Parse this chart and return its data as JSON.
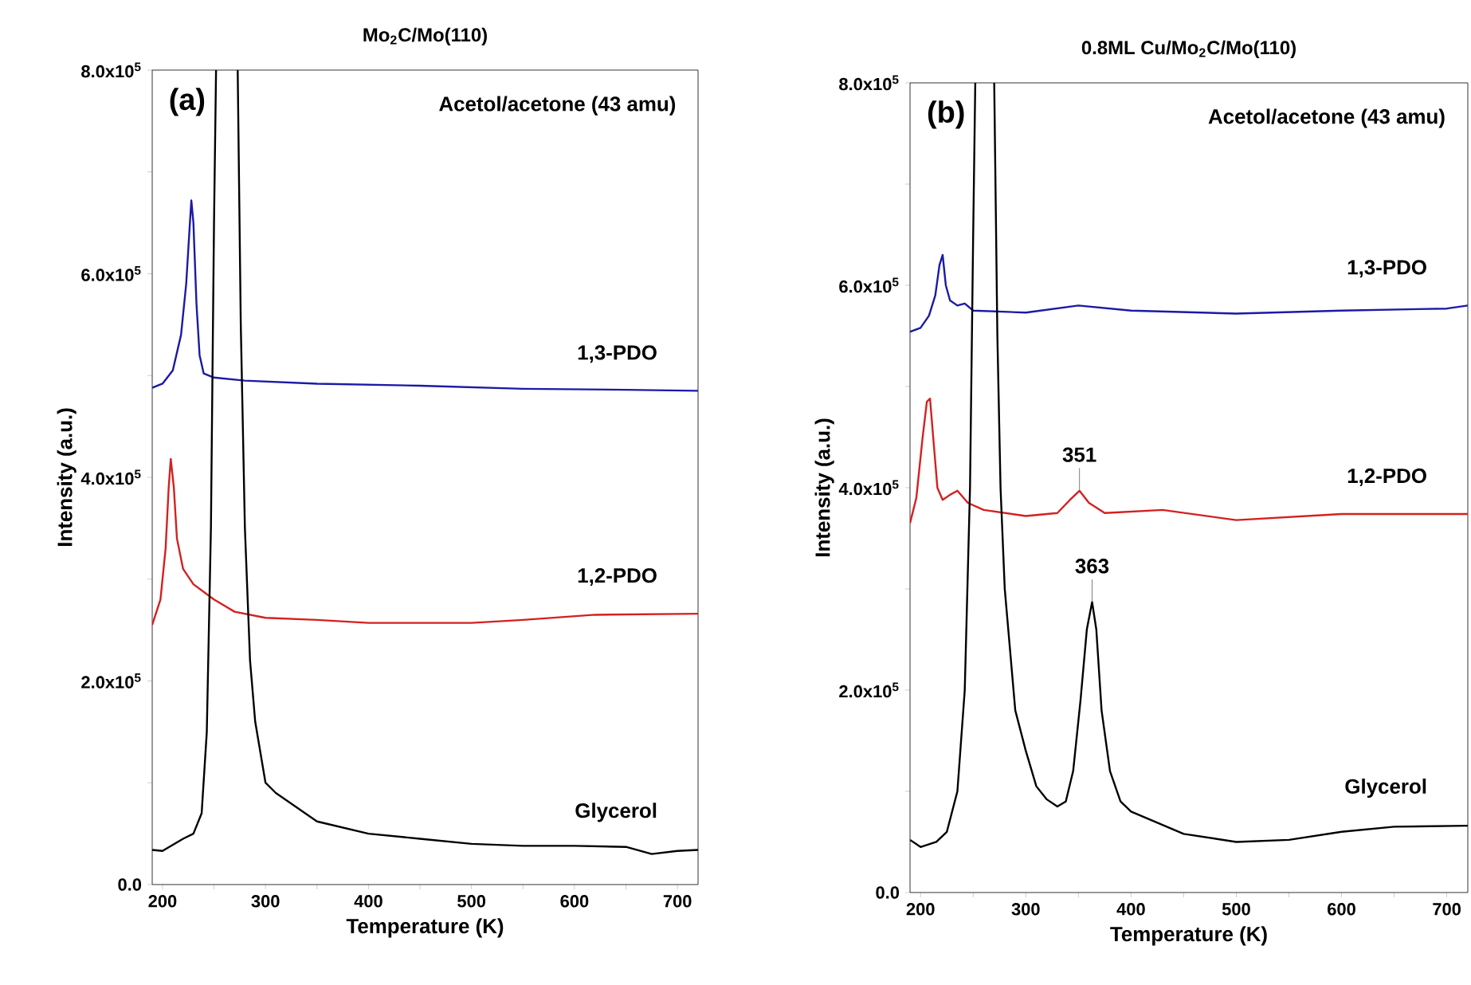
{
  "chart_data": [
    {
      "type": "line",
      "title": "Mo$_{2}$C/Mo(110)",
      "xlabel": "Temperature (K)",
      "ylabel": "Intensity (a.u.)",
      "xlim": [
        190,
        720
      ],
      "ylim": [
        0,
        800000
      ],
      "xticks": [
        200,
        {
          "value": 250,
          "label": null
        },
        300,
        {
          "value": 350,
          "label": null
        },
        400,
        {
          "value": 450,
          "label": null
        },
        500,
        {
          "value": 550,
          "label": null
        },
        600,
        {
          "value": 650,
          "label": null
        },
        700
      ],
      "yticks": [
        {
          "value": 0,
          "label": "0.0"
        },
        {
          "value": 100000,
          "label": null
        },
        {
          "value": 200000,
          "label": "2.0x10$^{5}$"
        },
        {
          "value": 300000,
          "label": null
        },
        {
          "value": 400000,
          "label": "4.0x10$^{5}$"
        },
        {
          "value": 500000,
          "label": null
        },
        {
          "value": 600000,
          "label": "6.0x10$^{5}$"
        },
        {
          "value": 700000,
          "label": null
        },
        {
          "value": 800000,
          "label": "8.0x10$^{5}$"
        }
      ],
      "annotations": [
        "(a)",
        "Acetol/acetone (43 amu)"
      ],
      "series": [
        {
          "name": "1,3-PDO",
          "color": "#1a1aa6",
          "x": [
            190,
            200,
            210,
            218,
            223,
            226,
            228,
            230,
            233,
            236,
            240,
            250,
            280,
            350,
            450,
            550,
            650,
            720
          ],
          "values": [
            488000,
            492000,
            505000,
            540000,
            590000,
            640000,
            672000,
            650000,
            570000,
            520000,
            502000,
            498000,
            495000,
            492000,
            490000,
            487000,
            486000,
            485000
          ]
        },
        {
          "name": "1,2-PDO",
          "color": "#d42020",
          "x": [
            190,
            198,
            203,
            206,
            208,
            211,
            214,
            220,
            230,
            250,
            270,
            300,
            350,
            400,
            500,
            550,
            620,
            720
          ],
          "values": [
            255000,
            280000,
            330000,
            390000,
            418000,
            390000,
            340000,
            310000,
            295000,
            280000,
            268000,
            262000,
            260000,
            257000,
            257000,
            260000,
            265000,
            266000
          ]
        },
        {
          "name": "Glycerol",
          "color": "#000000",
          "x": [
            190,
            200,
            220,
            230,
            238,
            243,
            247,
            250,
            252,
            262,
            273,
            276,
            280,
            285,
            290,
            300,
            310,
            350,
            400,
            450,
            500,
            550,
            600,
            650,
            675,
            700,
            720
          ],
          "values": [
            34000,
            33000,
            45000,
            50000,
            70000,
            150000,
            350000,
            650000,
            800000,
            null,
            800000,
            550000,
            350000,
            220000,
            160000,
            100000,
            90000,
            62000,
            50000,
            45000,
            40000,
            38000,
            38000,
            37000,
            30000,
            33000,
            34000
          ]
        }
      ]
    },
    {
      "type": "line",
      "title": "0.8ML Cu/Mo$_{2}$C/Mo(110)",
      "xlabel": "Temperature (K)",
      "ylabel": "Intensity (a.u.)",
      "xlim": [
        190,
        720
      ],
      "ylim": [
        0,
        800000
      ],
      "xticks": [
        200,
        {
          "value": 250,
          "label": null
        },
        300,
        {
          "value": 350,
          "label": null
        },
        400,
        {
          "value": 450,
          "label": null
        },
        500,
        {
          "value": 550,
          "label": null
        },
        600,
        {
          "value": 650,
          "label": null
        },
        700
      ],
      "yticks": [
        {
          "value": 0,
          "label": "0.0"
        },
        {
          "value": 100000,
          "label": null
        },
        {
          "value": 200000,
          "label": "2.0x10$^{5}$"
        },
        {
          "value": 300000,
          "label": null
        },
        {
          "value": 400000,
          "label": "4.0x10$^{5}$"
        },
        {
          "value": 500000,
          "label": null
        },
        {
          "value": 600000,
          "label": "6.0x10$^{5}$"
        },
        {
          "value": 700000,
          "label": null
        },
        {
          "value": 800000,
          "label": "8.0x10$^{5}$"
        }
      ],
      "annotations": [
        "(b)",
        "Acetol/acetone (43 amu)",
        {
          "text": "351",
          "x": 351,
          "y": 397000
        },
        {
          "text": "363",
          "x": 363,
          "y": 287000
        }
      ],
      "series": [
        {
          "name": "1,3-PDO",
          "color": "#1a1aa6",
          "x": [
            190,
            200,
            208,
            214,
            218,
            221,
            224,
            228,
            235,
            242,
            250,
            300,
            350,
            400,
            500,
            600,
            700,
            720
          ],
          "values": [
            554000,
            558000,
            570000,
            590000,
            620000,
            630000,
            600000,
            585000,
            580000,
            582000,
            575000,
            573000,
            580000,
            575000,
            572000,
            575000,
            577000,
            580000
          ]
        },
        {
          "name": "1,2-PDO",
          "color": "#d42020",
          "x": [
            190,
            196,
            202,
            206,
            209,
            212,
            216,
            221,
            228,
            235,
            245,
            260,
            300,
            330,
            342,
            351,
            360,
            375,
            430,
            500,
            600,
            720
          ],
          "values": [
            365000,
            390000,
            450000,
            485000,
            488000,
            450000,
            400000,
            388000,
            393000,
            397000,
            385000,
            378000,
            372000,
            375000,
            388000,
            397000,
            385000,
            375000,
            378000,
            368000,
            374000,
            374000
          ]
        },
        {
          "name": "Glycerol",
          "color": "#000000",
          "x": [
            190,
            200,
            215,
            225,
            235,
            242,
            247,
            250,
            252,
            261,
            270,
            273,
            276,
            280,
            290,
            300,
            310,
            320,
            330,
            338,
            345,
            352,
            358,
            363,
            367,
            372,
            380,
            390,
            400,
            450,
            500,
            550,
            600,
            650,
            720
          ],
          "values": [
            52000,
            45000,
            50000,
            60000,
            100000,
            200000,
            400000,
            650000,
            800000,
            null,
            800000,
            550000,
            400000,
            300000,
            180000,
            140000,
            105000,
            92000,
            85000,
            90000,
            120000,
            190000,
            260000,
            287000,
            260000,
            180000,
            120000,
            90000,
            80000,
            58000,
            50000,
            52000,
            60000,
            65000,
            66000
          ]
        }
      ]
    }
  ]
}
